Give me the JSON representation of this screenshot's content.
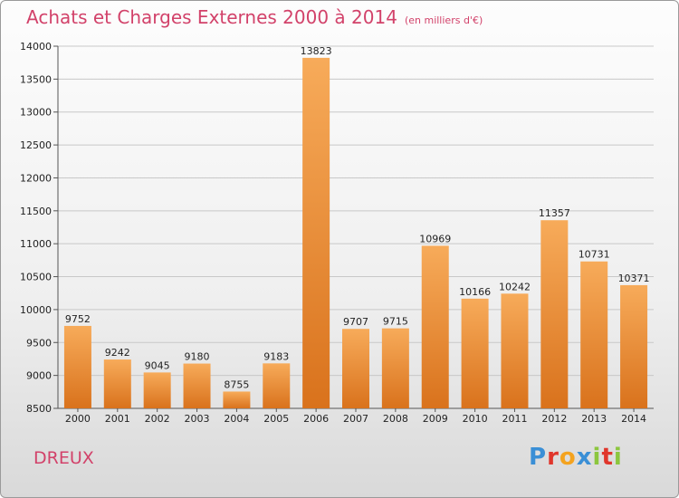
{
  "header": {
    "title": "Achats et Charges Externes 2000 à 2014",
    "unit": "(en milliers d'€)"
  },
  "footer": {
    "place": "DREUX",
    "logo_letters": [
      "P",
      "r",
      "o",
      "x",
      "i",
      "t",
      "i"
    ],
    "logo_colors": [
      "#3a8fd6",
      "#e0362c",
      "#f4a31f",
      "#3a8fd6",
      "#8cc63e",
      "#e0362c",
      "#8cc63e"
    ]
  },
  "colors": {
    "bar_top": "#f7ab5a",
    "bar_bottom": "#d9721c",
    "grid": "#c8c8c8",
    "accent": "#d2426a"
  },
  "chart_data": {
    "type": "bar",
    "title": "Achats et Charges Externes 2000 à 2014",
    "subtitle": "(en milliers d'€)",
    "xlabel": "",
    "ylabel": "",
    "categories": [
      "2000",
      "2001",
      "2002",
      "2003",
      "2004",
      "2005",
      "2006",
      "2007",
      "2008",
      "2009",
      "2010",
      "2011",
      "2012",
      "2013",
      "2014"
    ],
    "values": [
      9752,
      9242,
      9045,
      9180,
      8755,
      9183,
      13823,
      9707,
      9715,
      10969,
      10166,
      10242,
      11357,
      10731,
      10371
    ],
    "ylim": [
      8500,
      14000
    ],
    "yticks": [
      8500,
      9000,
      9500,
      10000,
      10500,
      11000,
      11500,
      12000,
      12500,
      13000,
      13500,
      14000
    ],
    "grid": true,
    "legend": "none"
  }
}
